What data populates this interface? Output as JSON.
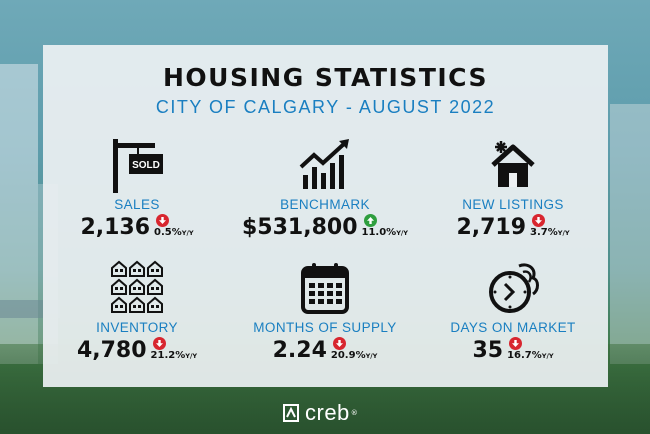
{
  "title": "HOUSING STATISTICS",
  "subtitle": "CITY OF CALGARY - AUGUST 2022",
  "yy_suffix": "Y/Y",
  "stats": [
    {
      "label": "SALES",
      "value": "2,136",
      "change": "0.5%",
      "direction": "down",
      "icon": "sold-sign-icon"
    },
    {
      "label": "BENCHMARK",
      "value": "$531,800",
      "change": "11.0%",
      "direction": "up",
      "icon": "trend-chart-icon"
    },
    {
      "label": "NEW LISTINGS",
      "value": "2,719",
      "change": "3.7%",
      "direction": "down",
      "icon": "house-sparkle-icon"
    },
    {
      "label": "INVENTORY",
      "value": "4,780",
      "change": "21.2%",
      "direction": "down",
      "icon": "houses-grid-icon"
    },
    {
      "label": "MONTHS OF SUPPLY",
      "value": "2.24",
      "change": "20.9%",
      "direction": "down",
      "icon": "calendar-icon"
    },
    {
      "label": "DAYS ON MARKET",
      "value": "35",
      "change": "16.7%",
      "direction": "down",
      "icon": "fast-clock-icon"
    }
  ],
  "sold_sign_text": "SOLD",
  "brand": {
    "name": "creb",
    "reg": "®"
  },
  "colors": {
    "accent": "#1a7fc1",
    "down": "#d8262f",
    "up": "#2e9e3e",
    "text": "#111111"
  }
}
